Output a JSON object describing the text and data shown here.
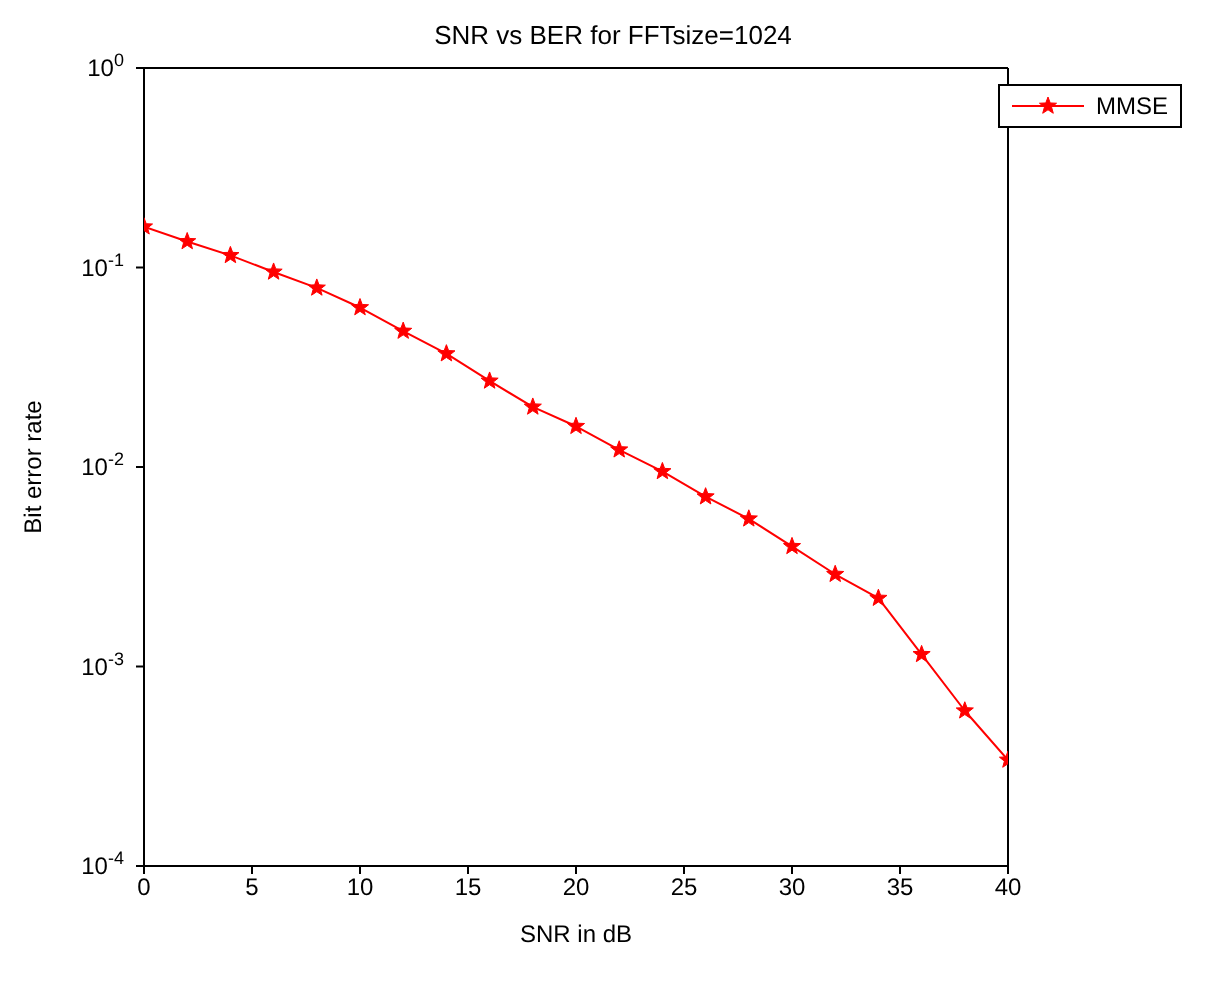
{
  "chart_data": {
    "type": "line",
    "title": "SNR vs BER for FFTsize=1024",
    "xlabel": "SNR in dB",
    "ylabel": "Bit error rate",
    "x": [
      0,
      2,
      4,
      6,
      8,
      10,
      12,
      14,
      16,
      18,
      20,
      22,
      24,
      26,
      28,
      30,
      32,
      34,
      36,
      38,
      40
    ],
    "series": [
      {
        "name": "MMSE",
        "color": "#ff0000",
        "values": [
          0.16,
          0.135,
          0.115,
          0.095,
          0.079,
          0.063,
          0.048,
          0.037,
          0.027,
          0.02,
          0.016,
          0.0122,
          0.0095,
          0.0071,
          0.0055,
          0.004,
          0.0029,
          0.0022,
          0.00115,
          0.0006,
          0.00034
        ]
      }
    ],
    "log": "y",
    "xlim": [
      0,
      40
    ],
    "xticks": [
      0,
      5,
      10,
      15,
      20,
      25,
      30,
      35,
      40
    ],
    "ylim": [
      0.0001,
      1
    ],
    "yticks": [
      {
        "value": 0.0001,
        "label": "10$^{-4}$"
      },
      {
        "value": 0.001,
        "label": "10$^{-3}$"
      },
      {
        "value": 0.01,
        "label": "10$^{-2}$"
      },
      {
        "value": 0.1,
        "label": "10$^{-1}$"
      },
      {
        "value": 1,
        "label": "10$^{0}$"
      }
    ],
    "grid": false,
    "legend": "top right",
    "marker": "star",
    "line_style": "solid"
  }
}
